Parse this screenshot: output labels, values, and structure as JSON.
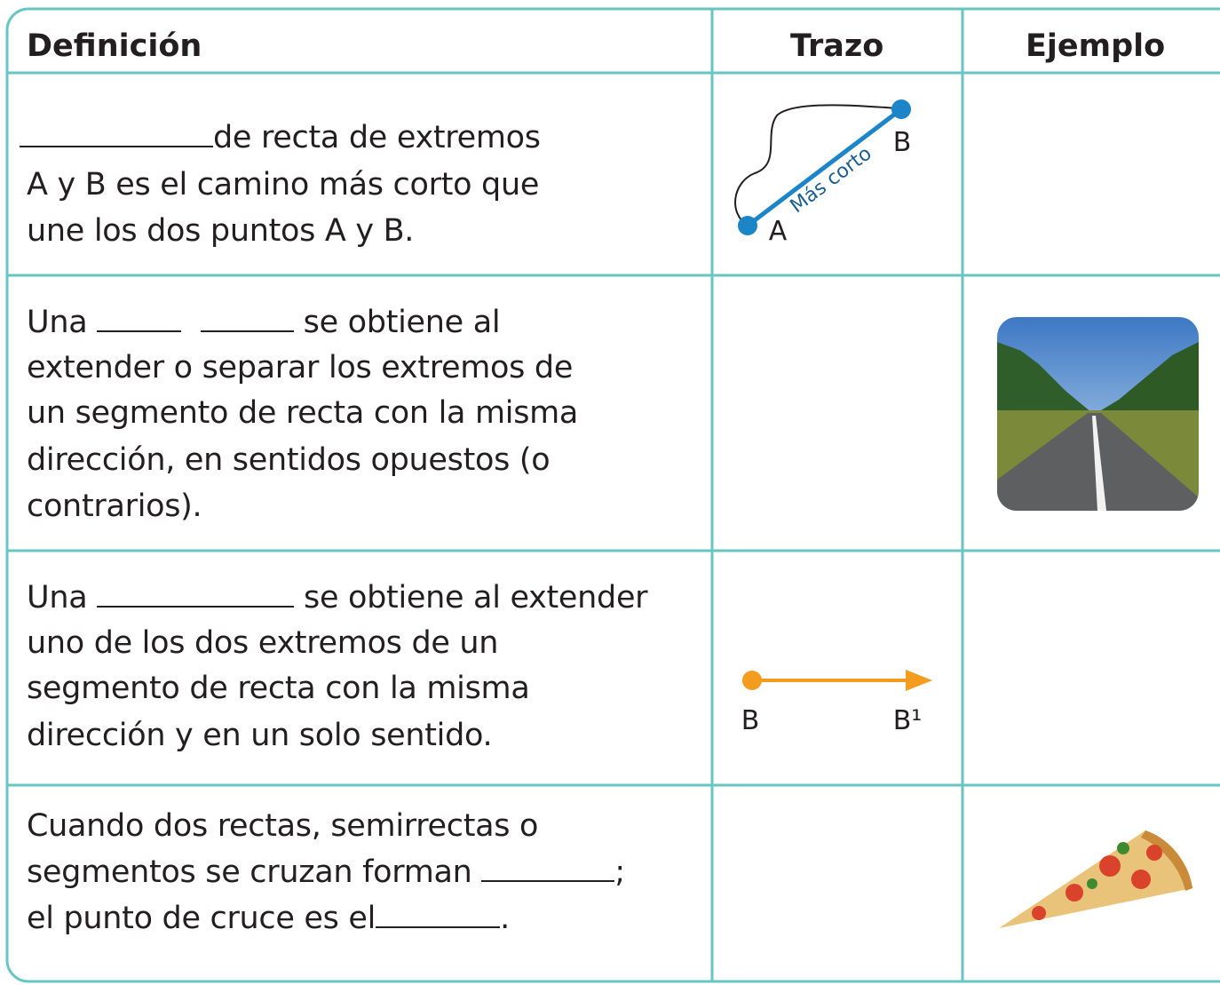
{
  "table": {
    "headers": [
      "Definición",
      "Trazo",
      "Ejemplo"
    ],
    "rows": [
      {
        "definition": [
          "de recta de extremos",
          "A y B es el camino más corto que",
          "une los dos puntos A y B."
        ],
        "drawing_labels": [
          "A",
          "B",
          "Más corto"
        ]
      },
      {
        "definition": [
          "Una",
          "se obtiene al",
          "extender o separar los extremos de",
          "un segmento de recta con la misma",
          "dirección, en sentidos opuestos (o",
          "contrarios)."
        ]
      },
      {
        "definition": [
          "Una",
          "se obtiene al extender",
          "uno de los dos extremos de un",
          "segmento de recta con la misma",
          "dirección y en un solo sentido."
        ],
        "drawing_labels": [
          "B",
          "B¹"
        ]
      },
      {
        "definition": [
          "Cuando dos rectas, semirrectas o",
          "segmentos se cruzan forman",
          ";",
          "el punto de cruce es el",
          "."
        ]
      }
    ]
  }
}
